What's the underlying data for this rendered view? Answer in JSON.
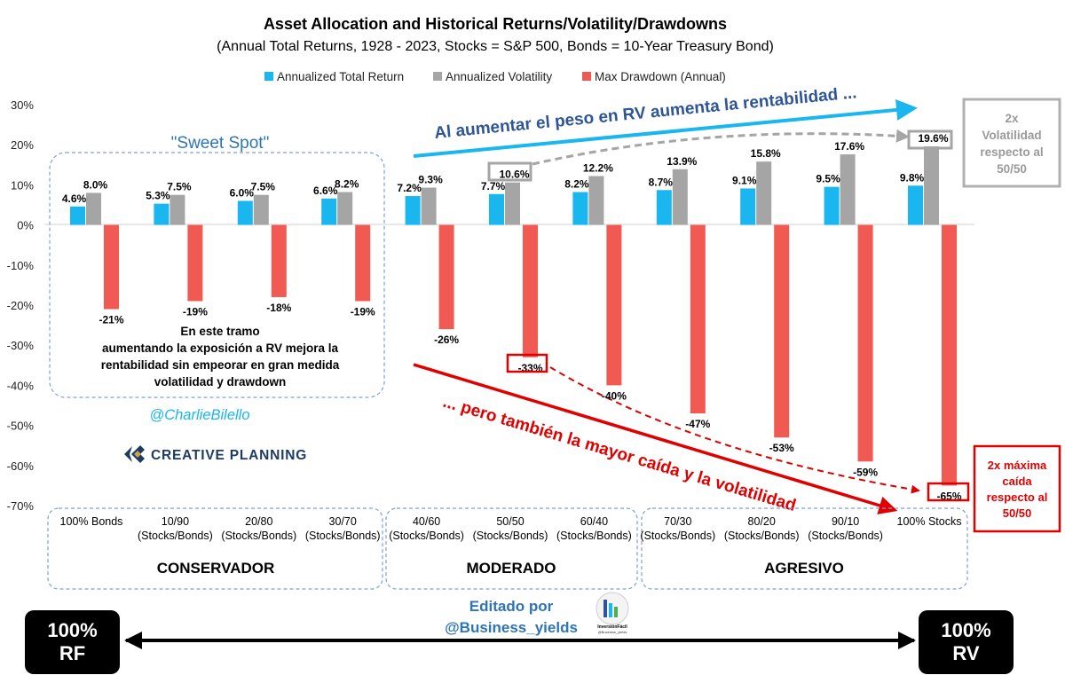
{
  "chart_data": {
    "type": "bar",
    "title": "Asset Allocation and Historical Returns/Volatility/Drawdowns",
    "subtitle": "(Annual Total Returns, 1928 - 2023, Stocks = S&P 500, Bonds = 10-Year Treasury Bond)",
    "categories": [
      [
        "100% Bonds"
      ],
      [
        "10/90",
        "(Stocks/Bonds)"
      ],
      [
        "20/80",
        "(Stocks/Bonds)"
      ],
      [
        "30/70",
        "(Stocks/Bonds)"
      ],
      [
        "40/60",
        "(Stocks/Bonds)"
      ],
      [
        "50/50",
        "(Stocks/Bonds)"
      ],
      [
        "60/40",
        "(Stocks/Bonds)"
      ],
      [
        "70/30",
        "(Stocks/Bonds)"
      ],
      [
        "80/20",
        "(Stocks/Bonds)"
      ],
      [
        "90/10",
        "(Stocks/Bonds)"
      ],
      [
        "100% Stocks"
      ]
    ],
    "series": [
      {
        "name": "Annualized Total Return",
        "color": "#19b6ef",
        "values": [
          4.6,
          5.3,
          6.0,
          6.6,
          7.2,
          7.7,
          8.2,
          8.7,
          9.1,
          9.5,
          9.8
        ],
        "labels": [
          "4.6%",
          "5.3%",
          "6.0%",
          "6.6%",
          "7.2%",
          "7.7%",
          "8.2%",
          "8.7%",
          "9.1%",
          "9.5%",
          "9.8%"
        ]
      },
      {
        "name": "Annualized Volatility",
        "color": "#a5a5a5",
        "values": [
          8.0,
          7.5,
          7.5,
          8.2,
          9.3,
          10.6,
          12.2,
          13.9,
          15.8,
          17.6,
          19.6
        ],
        "labels": [
          "8.0%",
          "7.5%",
          "7.5%",
          "8.2%",
          "9.3%",
          "10.6%",
          "12.2%",
          "13.9%",
          "15.8%",
          "17.6%",
          "19.6%"
        ]
      },
      {
        "name": "Max Drawdown (Annual)",
        "color": "#f05a52",
        "values": [
          -21,
          -19,
          -18,
          -19,
          -26,
          -33,
          -40,
          -47,
          -53,
          -59,
          -65
        ],
        "labels": [
          "-21%",
          "-19%",
          "-18%",
          "-19%",
          "-26%",
          "-33%",
          "-40%",
          "-47%",
          "-53%",
          "-59%",
          "-65%"
        ]
      }
    ],
    "ylim": [
      -70,
      30
    ],
    "yticks": [
      "30%",
      "20%",
      "10%",
      "0%",
      "-10%",
      "-20%",
      "-30%",
      "-40%",
      "-50%",
      "-60%",
      "-70%"
    ],
    "ytick_values": [
      30,
      20,
      10,
      0,
      -10,
      -20,
      -30,
      -40,
      -50,
      -60,
      -70
    ],
    "legend_position": "top",
    "xlabel": "",
    "ylabel": ""
  },
  "annotations": {
    "sweet_spot_title": "\"Sweet Spot\"",
    "sweet_spot_text": [
      "En este tramo",
      "aumentando  la exposición a RV mejora la",
      "rentabilidad sin empeorar en gran medida",
      "volatilidad y drawdown"
    ],
    "handle": "@CharlieBilello",
    "logo_text": "CREATIVE PLANNING",
    "up_arrow_text": "Al aumentar el peso en RV aumenta la rentabilidad ...",
    "down_arrow_text": "... pero también la mayor caída y la volatilidad",
    "vol_box": [
      "2x",
      "Volatilidad",
      "respecto al",
      "50/50"
    ],
    "dd_box": [
      "2x máxima",
      "caída",
      "respecto al",
      "50/50"
    ],
    "groups": [
      "CONSERVADOR",
      "MODERADO",
      "AGRESIVO"
    ],
    "edited_by": [
      "Editado por",
      "@Business_yields"
    ],
    "logo2_text": [
      "InversiónFácil",
      "@Business_yields"
    ],
    "left_box": [
      "100%",
      "RF"
    ],
    "right_box": [
      "100%",
      "RV"
    ]
  },
  "colors": {
    "return": "#19b6ef",
    "volatility": "#a5a5a5",
    "drawdown": "#f05a52",
    "blue_text": "#2e75b6",
    "red_text": "#e00000",
    "dash_box": "#7f9fd4"
  }
}
